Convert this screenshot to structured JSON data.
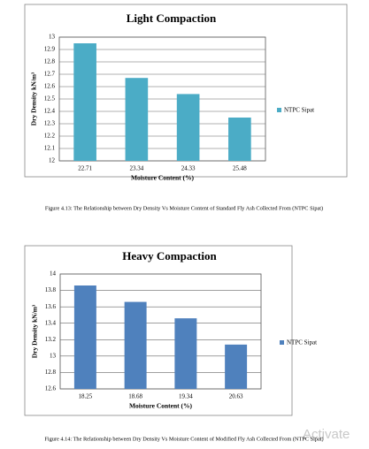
{
  "chart_data": [
    {
      "type": "bar",
      "title": "Light Compaction",
      "x_label": "Moisture Content (%)",
      "y_label": "Dry Density kN/m³",
      "categories": [
        "22.71",
        "23.34",
        "24.33",
        "25.48"
      ],
      "series": [
        {
          "name": "NTPC Sipat",
          "color": "#4bacc6",
          "values": [
            12.95,
            12.67,
            12.54,
            12.35
          ]
        }
      ],
      "ylim": [
        12,
        13
      ],
      "yticks": [
        12,
        12.1,
        12.2,
        12.3,
        12.4,
        12.5,
        12.6,
        12.7,
        12.8,
        12.9,
        13
      ],
      "legend": "right",
      "caption": "Figure 4.13: The Relationship between Dry Density Vs Moisture Content of Standard Fly Ash Collected From (NTPC Sipat)"
    },
    {
      "type": "bar",
      "title": "Heavy Compaction",
      "x_label": "Moisture Content (%)",
      "y_label": "Dry Density kN/m³",
      "categories": [
        "18.25",
        "18.68",
        "19.34",
        "20.63"
      ],
      "series": [
        {
          "name": "NTPC Sipat",
          "color": "#4f81bd",
          "values": [
            13.86,
            13.66,
            13.46,
            13.14
          ]
        }
      ],
      "ylim": [
        12.6,
        14
      ],
      "yticks": [
        12.6,
        12.8,
        13,
        13.2,
        13.4,
        13.6,
        13.8,
        14
      ],
      "legend": "right",
      "caption": "Figure 4.14: The Relationship between Dry Density Vs Moisture Content of Modified Fly Ash Collected From (NTPC Sipat)"
    }
  ],
  "watermark": "Activate"
}
